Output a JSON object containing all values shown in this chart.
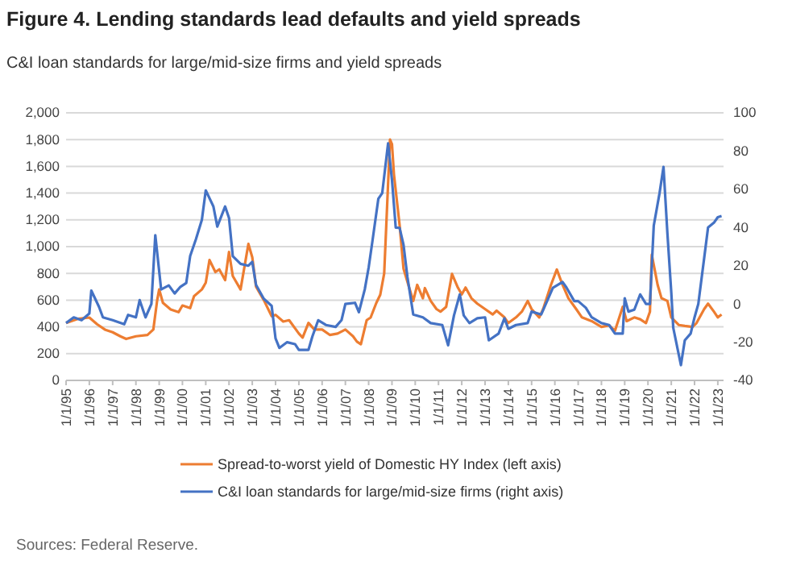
{
  "chart_data": {
    "type": "line",
    "title": "Figure 4. Lending standards lead defaults and yield spreads",
    "subtitle": "C&I loan standards for large/mid-size firms and yield spreads",
    "xlim": [
      "1995-01-01",
      "2023-04-01"
    ],
    "xticks": [
      {
        "value": "1995-01-01",
        "label": "1/1/95"
      },
      {
        "value": "1996-01-01",
        "label": "1/1/96"
      },
      {
        "value": "1997-01-01",
        "label": "1/1/97"
      },
      {
        "value": "1998-01-01",
        "label": "1/1/98"
      },
      {
        "value": "1999-01-01",
        "label": "1/1/99"
      },
      {
        "value": "2000-01-01",
        "label": "1/1/00"
      },
      {
        "value": "2001-01-01",
        "label": "1/1/01"
      },
      {
        "value": "2002-01-01",
        "label": "1/1/02"
      },
      {
        "value": "2003-01-01",
        "label": "1/1/03"
      },
      {
        "value": "2004-01-01",
        "label": "1/1/04"
      },
      {
        "value": "2005-01-01",
        "label": "1/1/05"
      },
      {
        "value": "2006-01-01",
        "label": "1/1/06"
      },
      {
        "value": "2007-01-01",
        "label": "1/1/07"
      },
      {
        "value": "2008-01-01",
        "label": "1/1/08"
      },
      {
        "value": "2009-01-01",
        "label": "1/1/09"
      },
      {
        "value": "2010-01-01",
        "label": "1/1/10"
      },
      {
        "value": "2011-01-01",
        "label": "1/1/11"
      },
      {
        "value": "2012-01-01",
        "label": "1/1/12"
      },
      {
        "value": "2013-01-01",
        "label": "1/1/13"
      },
      {
        "value": "2014-01-01",
        "label": "1/1/14"
      },
      {
        "value": "2015-01-01",
        "label": "1/1/15"
      },
      {
        "value": "2016-01-01",
        "label": "1/1/16"
      },
      {
        "value": "2017-01-01",
        "label": "1/1/17"
      },
      {
        "value": "2018-01-01",
        "label": "1/1/18"
      },
      {
        "value": "2019-01-01",
        "label": "1/1/19"
      },
      {
        "value": "2020-01-01",
        "label": "1/1/20"
      },
      {
        "value": "2021-01-01",
        "label": "1/1/21"
      },
      {
        "value": "2022-01-01",
        "label": "1/1/22"
      },
      {
        "value": "2023-01-01",
        "label": "1/1/23"
      }
    ],
    "ylim": [
      0,
      2000
    ],
    "yticks": [
      {
        "value": 0,
        "label": "0"
      },
      {
        "value": 200,
        "label": "200"
      },
      {
        "value": 400,
        "label": "400"
      },
      {
        "value": 600,
        "label": "600"
      },
      {
        "value": 800,
        "label": "800"
      },
      {
        "value": 1000,
        "label": "1,000"
      },
      {
        "value": 1200,
        "label": "1,200"
      },
      {
        "value": 1400,
        "label": "1,400"
      },
      {
        "value": 1600,
        "label": "1,600"
      },
      {
        "value": 1800,
        "label": "1,800"
      },
      {
        "value": 2000,
        "label": "2,000"
      }
    ],
    "y2lim": [
      -40,
      100
    ],
    "y2ticks": [
      -40,
      -20,
      0,
      20,
      40,
      60,
      80,
      100
    ],
    "grid": "y",
    "legend": "bottom",
    "series": [
      {
        "name": "Spread-to-worst yield of Domestic HY Index (left axis)",
        "color": "#ed7d31",
        "x": [
          "1995-01",
          "1995-07",
          "1996-01",
          "1996-05",
          "1996-09",
          "1997-01",
          "1997-05",
          "1997-08",
          "1998-01",
          "1998-07",
          "1998-10",
          "1998-12",
          "1999-01",
          "1999-03",
          "1999-07",
          "1999-11",
          "2000-01",
          "2000-05",
          "2000-07",
          "2000-11",
          "2001-01",
          "2001-03",
          "2001-06",
          "2001-08",
          "2001-11",
          "2002-01",
          "2002-03",
          "2002-07",
          "2002-11",
          "2003-01",
          "2003-03",
          "2003-07",
          "2003-11",
          "2004-01",
          "2004-05",
          "2004-08",
          "2005-01",
          "2005-03",
          "2005-06",
          "2005-09",
          "2006-01",
          "2006-05",
          "2006-09",
          "2007-01",
          "2007-05",
          "2007-07",
          "2007-09",
          "2007-12",
          "2008-02",
          "2008-05",
          "2008-07",
          "2008-09",
          "2008-12",
          "2009-01",
          "2009-02",
          "2009-05",
          "2009-07",
          "2009-09",
          "2009-12",
          "2010-02",
          "2010-05",
          "2010-06",
          "2010-09",
          "2010-12",
          "2011-02",
          "2011-05",
          "2011-08",
          "2011-11",
          "2012-01",
          "2012-03",
          "2012-06",
          "2012-09",
          "2013-01",
          "2013-05",
          "2013-07",
          "2013-11",
          "2014-01",
          "2014-05",
          "2014-08",
          "2014-11",
          "2015-01",
          "2015-05",
          "2015-07",
          "2015-11",
          "2016-02",
          "2016-05",
          "2016-08",
          "2016-12",
          "2017-03",
          "2017-08",
          "2018-01",
          "2018-05",
          "2018-08",
          "2018-12",
          "2019-02",
          "2019-06",
          "2019-09",
          "2019-12",
          "2020-02",
          "2020-03",
          "2020-06",
          "2020-08",
          "2020-11",
          "2021-01",
          "2021-05",
          "2021-08",
          "2021-12",
          "2022-02",
          "2022-06",
          "2022-08",
          "2022-11",
          "2023-01",
          "2023-03"
        ],
        "values": [
          430,
          460,
          470,
          420,
          380,
          360,
          330,
          310,
          330,
          340,
          380,
          600,
          680,
          580,
          530,
          510,
          560,
          540,
          630,
          680,
          730,
          900,
          810,
          830,
          750,
          960,
          780,
          680,
          1020,
          920,
          700,
          600,
          480,
          490,
          440,
          450,
          350,
          320,
          430,
          380,
          380,
          340,
          350,
          380,
          330,
          290,
          270,
          450,
          470,
          580,
          640,
          800,
          1800,
          1766,
          1540,
          1160,
          836,
          736,
          594,
          714,
          614,
          690,
          594,
          533,
          514,
          550,
          796,
          694,
          643,
          694,
          614,
          574,
          533,
          493,
          521,
          471,
          429,
          471,
          514,
          594,
          533,
          471,
          533,
          714,
          829,
          714,
          614,
          533,
          471,
          443,
          400,
          412,
          371,
          550,
          443,
          471,
          457,
          429,
          514,
          940,
          714,
          614,
          594,
          471,
          414,
          407,
          400,
          429,
          533,
          574,
          514,
          471,
          493
        ]
      },
      {
        "name": "C&I loan standards for large/mid-size firms (right axis)",
        "color": "#4472c4",
        "axis": "y2",
        "x": [
          "1995-01",
          "1995-05",
          "1995-09",
          "1996-01",
          "1996-02",
          "1996-06",
          "1996-08",
          "1997-01",
          "1997-07",
          "1997-09",
          "1998-01",
          "1998-03",
          "1998-06",
          "1998-09",
          "1998-11",
          "1999-02",
          "1999-06",
          "1999-09",
          "1999-12",
          "2000-03",
          "2000-05",
          "2000-08",
          "2000-11",
          "2001-01",
          "2001-05",
          "2001-07",
          "2001-11",
          "2002-01",
          "2002-03",
          "2002-07",
          "2002-11",
          "2003-01",
          "2003-03",
          "2003-07",
          "2003-11",
          "2004-01",
          "2004-03",
          "2004-07",
          "2004-11",
          "2005-01",
          "2005-06",
          "2005-08",
          "2005-11",
          "2006-03",
          "2006-08",
          "2006-11",
          "2007-01",
          "2007-06",
          "2007-08",
          "2007-11",
          "2008-01",
          "2008-03",
          "2008-06",
          "2008-08",
          "2008-11",
          "2009-01",
          "2009-03",
          "2009-05",
          "2009-07",
          "2009-09",
          "2009-12",
          "2010-05",
          "2010-09",
          "2011-03",
          "2011-06",
          "2011-09",
          "2011-12",
          "2012-02",
          "2012-05",
          "2012-09",
          "2013-01",
          "2013-03",
          "2013-08",
          "2013-11",
          "2014-01",
          "2014-05",
          "2014-11",
          "2015-01",
          "2015-06",
          "2015-09",
          "2015-12",
          "2016-05",
          "2016-07",
          "2016-11",
          "2017-01",
          "2017-05",
          "2017-08",
          "2018-01",
          "2018-05",
          "2018-08",
          "2018-12",
          "2019-01",
          "2019-03",
          "2019-06",
          "2019-09",
          "2019-12",
          "2020-02",
          "2020-04",
          "2020-07",
          "2020-09",
          "2020-11",
          "2021-01",
          "2021-02",
          "2021-06",
          "2021-08",
          "2021-11",
          "2022-01",
          "2022-03",
          "2022-06",
          "2022-08",
          "2022-11",
          "2023-01",
          "2023-03"
        ],
        "values": [
          -10,
          -7,
          -8.5,
          -5,
          7,
          -1.5,
          -7,
          -8.5,
          -10.6,
          -5.7,
          -7,
          2,
          -7,
          0,
          36,
          7.6,
          9.7,
          5.5,
          9,
          11,
          25,
          34,
          44,
          59.4,
          51,
          40.5,
          51,
          45,
          25,
          21,
          20,
          22,
          10,
          2.7,
          -1,
          -18,
          -23,
          -20,
          -21,
          -24,
          -24,
          -17,
          -8.5,
          -11,
          -12,
          -8.5,
          0,
          0.6,
          -4.3,
          7.6,
          19,
          33,
          55,
          58,
          84,
          65,
          40,
          39.8,
          31,
          14,
          -5.5,
          -7,
          -10,
          -11,
          -21.6,
          -6,
          5,
          -6,
          -10,
          -7.5,
          -7,
          -19,
          -15.5,
          -7.5,
          -13,
          -11,
          -10,
          -4,
          -5.5,
          1.5,
          8.4,
          11.5,
          8.6,
          1.5,
          1.5,
          -2,
          -7,
          -10,
          -11,
          -15.5,
          -15.5,
          3,
          -4,
          -3,
          5,
          0,
          0,
          41,
          58,
          71.7,
          37,
          6,
          -12.5,
          -32,
          -19,
          -15.5,
          -7,
          0,
          24,
          40,
          42.5,
          45.4,
          46
        ]
      }
    ],
    "annotations": [
      "Sources: Federal Reserve."
    ]
  }
}
